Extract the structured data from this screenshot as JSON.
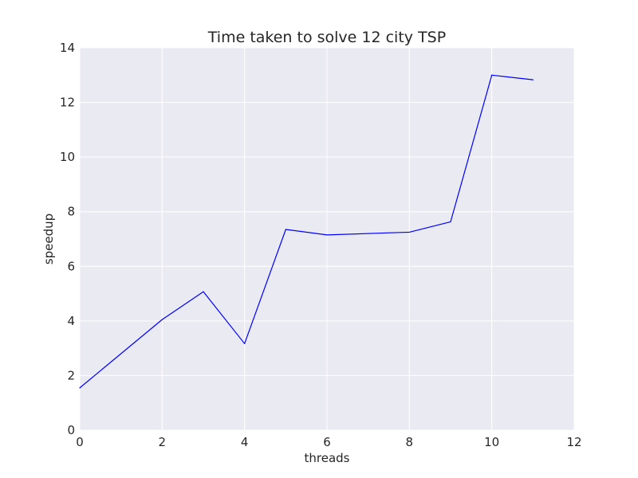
{
  "chart_data": {
    "type": "line",
    "title": "Time taken to solve 12 city TSP",
    "xlabel": "threads",
    "ylabel": "speedup",
    "xlim": [
      0,
      12
    ],
    "ylim": [
      0,
      14
    ],
    "x_ticks": [
      0,
      2,
      4,
      6,
      8,
      10,
      12
    ],
    "y_ticks": [
      0,
      2,
      4,
      6,
      8,
      10,
      12,
      14
    ],
    "grid": true,
    "legend": "none",
    "series": [
      {
        "color": "#0000ff",
        "points": [
          {
            "x": 0,
            "y": 1.55
          },
          {
            "x": 2,
            "y": 4.05
          },
          {
            "x": 3,
            "y": 5.07
          },
          {
            "x": 4,
            "y": 3.17
          },
          {
            "x": 5,
            "y": 7.35
          },
          {
            "x": 6,
            "y": 7.15
          },
          {
            "x": 8,
            "y": 7.25
          },
          {
            "x": 9,
            "y": 7.63
          },
          {
            "x": 10,
            "y": 13.0
          },
          {
            "x": 11,
            "y": 12.83
          }
        ]
      }
    ],
    "colors": {
      "plot_background": "#eaeaf2",
      "grid": "#ffffff",
      "text": "#262626"
    }
  }
}
